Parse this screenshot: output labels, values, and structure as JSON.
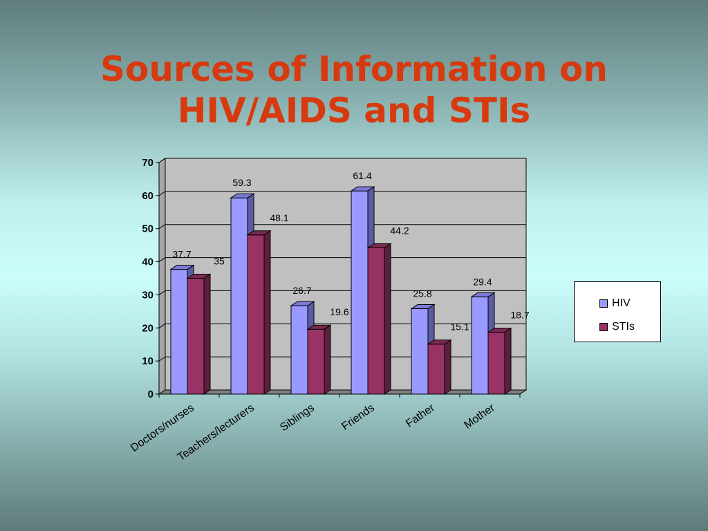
{
  "title": {
    "line1": "Sources of Information on",
    "line2": "HIV/AIDS and STIs"
  },
  "colors": {
    "title": "#d63a0e",
    "hiv_front": "#9999ff",
    "hiv_side": "#5c5ca6",
    "hiv_top": "#7a7ad8",
    "sti_front": "#993366",
    "sti_side": "#5c1f3e",
    "sti_top": "#7a2951",
    "plot_bg": "#c0c0c0",
    "floor": "#808080"
  },
  "chart_data": {
    "type": "bar",
    "title": "Sources of Information on HIV/AIDS and STIs",
    "categories": [
      "Doctors/nurses",
      "Teachers/lecturers",
      "Siblings",
      "Friends",
      "Father",
      "Mother"
    ],
    "series": [
      {
        "name": "HIV",
        "values": [
          37.7,
          59.3,
          26.7,
          61.4,
          25.8,
          29.4
        ],
        "labels": [
          "37.7",
          "59.3",
          "26.7",
          "61.4",
          "25.8",
          "29.4"
        ]
      },
      {
        "name": "STIs",
        "values": [
          35,
          48.1,
          19.6,
          44.2,
          15.1,
          18.7
        ],
        "labels": [
          "35",
          "48.1",
          "19.6",
          "44.2",
          "15.1",
          "18.7"
        ]
      }
    ],
    "ylim": [
      0,
      70
    ],
    "yticks": [
      "0",
      "10",
      "20",
      "30",
      "40",
      "50",
      "60",
      "70"
    ],
    "grid": true,
    "legend": "right",
    "xlabel": "",
    "ylabel": ""
  }
}
